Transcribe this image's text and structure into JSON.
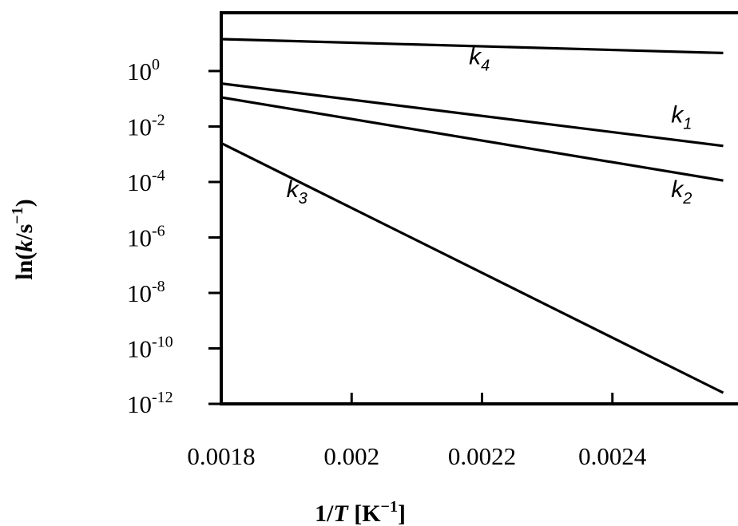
{
  "chart_data": {
    "type": "line",
    "title": "",
    "xlabel": {
      "text": "1/",
      "italic": "T",
      "unit_open": " [K",
      "unit_sup": "−1",
      "unit_close": "]"
    },
    "ylabel": {
      "text": "ln(",
      "italic": "k",
      "unit": "/s",
      "unit_sup": "−1",
      "close": ")"
    },
    "x_ticks": [
      {
        "value": 0.0018,
        "label": "0.0018"
      },
      {
        "value": 0.002,
        "label": "0.002"
      },
      {
        "value": 0.0022,
        "label": "0.0022"
      },
      {
        "value": 0.0024,
        "label": "0.0024"
      }
    ],
    "y_ticks": [
      {
        "exp": 0,
        "base": "10",
        "sup": "0"
      },
      {
        "exp": -2,
        "base": "10",
        "sup": "-2"
      },
      {
        "exp": -4,
        "base": "10",
        "sup": "-4"
      },
      {
        "exp": -6,
        "base": "10",
        "sup": "-6"
      },
      {
        "exp": -8,
        "base": "10",
        "sup": "-8"
      },
      {
        "exp": -10,
        "base": "10",
        "sup": "-10"
      },
      {
        "exp": -12,
        "base": "10",
        "sup": "-12"
      }
    ],
    "y_scale": "log",
    "grid": false,
    "xlim": [
      0.0018,
      0.00257
    ],
    "ylim_log10": [
      -12,
      2.1
    ],
    "series": [
      {
        "id": "k4",
        "name": "k",
        "sub": "4",
        "x": [
          0.0018,
          0.00257
        ],
        "log10_y": [
          1.15,
          0.65
        ]
      },
      {
        "id": "k1",
        "name": "k",
        "sub": "1",
        "x": [
          0.0018,
          0.00257
        ],
        "log10_y": [
          -0.45,
          -2.7
        ]
      },
      {
        "id": "k2",
        "name": "k",
        "sub": "2",
        "x": [
          0.0018,
          0.00257
        ],
        "log10_y": [
          -0.95,
          -3.95
        ]
      },
      {
        "id": "k3",
        "name": "k",
        "sub": "3",
        "x": [
          0.0018,
          0.00257
        ],
        "log10_y": [
          -2.6,
          -11.6
        ]
      }
    ],
    "series_label_anchor": [
      {
        "id": "k4",
        "x": 0.00218,
        "log10_y": 0.25
      },
      {
        "id": "k1",
        "x": 0.00249,
        "log10_y": -1.85
      },
      {
        "id": "k2",
        "x": 0.00249,
        "log10_y": -4.55
      },
      {
        "id": "k3",
        "x": 0.0019,
        "log10_y": -4.55
      }
    ]
  }
}
